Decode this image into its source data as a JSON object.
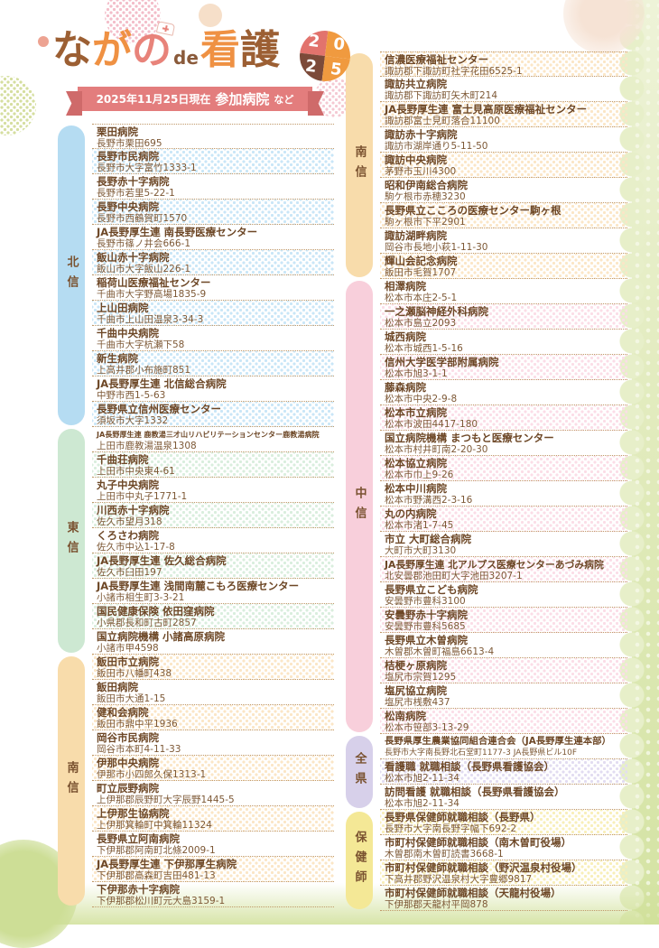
{
  "header": {
    "logo": {
      "full_title": "ながの de 看護 2025",
      "segments": [
        {
          "text": "な",
          "color": "#9c5f33"
        },
        {
          "text": "が",
          "color": "#ef9143"
        },
        {
          "text": "の",
          "color": "#e8837a"
        },
        {
          "text": "de",
          "color": "#8a5a3a"
        },
        {
          "text": "看",
          "color": "#ef9143"
        },
        {
          "text": "護",
          "color": "#9c5f33"
        }
      ],
      "badge_digits": [
        "2",
        "0",
        "2",
        "5"
      ],
      "badge_colors": [
        "#e2736d",
        "#f09a3f",
        "#7c4a39",
        "#f09a3f"
      ]
    },
    "ribbon": {
      "date_text": "2025年11月25日現在",
      "main_text": "参加病院",
      "suffix_text": "など",
      "color": "#e37d7d"
    }
  },
  "columns": [
    {
      "first_row_pattern": false,
      "sections": [
        {
          "region": "北信",
          "tab_color": "#b5dcf2",
          "dot_color": "#c9e6f7",
          "entries": [
            {
              "name": "栗田病院",
              "address": "長野市栗田695"
            },
            {
              "name": "長野市民病院",
              "address": "長野市大字富竹1333-1"
            },
            {
              "name": "長野赤十字病院",
              "address": "長野市若里5-22-1"
            },
            {
              "name": "長野中央病院",
              "address": "長野市西鶴賀町1570"
            },
            {
              "name": "JA長野厚生連 南長野医療センター",
              "address": "長野市篠ノ井会666-1"
            },
            {
              "name": "飯山赤十字病院",
              "address": "飯山市大字飯山226-1"
            },
            {
              "name": "稲荷山医療福祉センター",
              "address": "千曲市大字野高場1835-9"
            },
            {
              "name": "上山田病院",
              "address": "千曲市上山田温泉3-34-3"
            },
            {
              "name": "千曲中央病院",
              "address": "千曲市大字杭瀬下58"
            },
            {
              "name": "新生病院",
              "address": "上高井郡小布施町851"
            },
            {
              "name": "JA長野厚生連 北信総合病院",
              "address": "中野市西1-5-63"
            },
            {
              "name": "長野県立信州医療センター",
              "address": "須坂市大字1332"
            }
          ]
        },
        {
          "region": "東信",
          "tab_color": "#cde8d2",
          "dot_color": "#d9eedd",
          "entries": [
            {
              "name": "JA長野厚生連 鹿教湯三才山リハビリテーションセンター鹿教湯病院",
              "address": "上田市鹿教湯温泉1308"
            },
            {
              "name": "千曲荘病院",
              "address": "上田市中央東4-61"
            },
            {
              "name": "丸子中央病院",
              "address": "上田市中丸子1771-1"
            },
            {
              "name": "川西赤十字病院",
              "address": "佐久市望月318"
            },
            {
              "name": "くろさわ病院",
              "address": "佐久市中込1-17-8"
            },
            {
              "name": "JA長野厚生連 佐久総合病院",
              "address": "佐久市臼田197"
            },
            {
              "name": "JA長野厚生連 浅間南麓こもろ医療センター",
              "address": "小諸市相生町3-3-21"
            },
            {
              "name": "国民健康保険 依田窪病院",
              "address": "小県郡長和町古町2857"
            },
            {
              "name": "国立病院機構 小諸高原病院",
              "address": "小諸市甲4598"
            }
          ]
        },
        {
          "region": "南信",
          "tab_color": "#f8dcab",
          "dot_color": "#fbe6c6",
          "entries": [
            {
              "name": "飯田市立病院",
              "address": "飯田市八幡町438"
            },
            {
              "name": "飯田病院",
              "address": "飯田市大通1-15"
            },
            {
              "name": "健和会病院",
              "address": "飯田市鼎中平1936"
            },
            {
              "name": "岡谷市民病院",
              "address": "岡谷市本町4-11-33"
            },
            {
              "name": "伊那中央病院",
              "address": "伊那市小四郎久保1313-1"
            },
            {
              "name": "町立辰野病院",
              "address": "上伊那郡辰野町大字辰野1445-5"
            },
            {
              "name": "上伊那生協病院",
              "address": "上伊那箕輪町中箕輪11324"
            },
            {
              "name": "長野県立阿南病院",
              "address": "下伊那郡阿南町北條2009-1"
            },
            {
              "name": "JA長野厚生連 下伊那厚生病院",
              "address": "下伊那郡高森町吉田481-13"
            },
            {
              "name": "下伊那赤十字病院",
              "address": "下伊那郡松川町元大島3159-1"
            }
          ]
        }
      ]
    },
    {
      "first_row_pattern": true,
      "sections": [
        {
          "region": "南信",
          "tab_color": "#f8dcab",
          "dot_color": "#fbe6c6",
          "entries": [
            {
              "name": "信濃医療福祉センター",
              "address": "諏訪郡下諏訪町社字花田6525-1"
            },
            {
              "name": "諏訪共立病院",
              "address": "諏訪郡下諏訪町矢木町214"
            },
            {
              "name": "JA長野厚生連 富士見高原医療福祉センター",
              "address": "諏訪郡富士見町落合11100"
            },
            {
              "name": "諏訪赤十字病院",
              "address": "諏訪市湖岸通り5-11-50"
            },
            {
              "name": "諏訪中央病院",
              "address": "茅野市玉川4300"
            },
            {
              "name": "昭和伊南総合病院",
              "address": "駒ケ根市赤穂3230"
            },
            {
              "name": "長野県立こころの医療センター駒ヶ根",
              "address": "駒ヶ根市下平2901"
            },
            {
              "name": "諏訪湖畔病院",
              "address": "岡谷市長地小萩1-11-30"
            },
            {
              "name": "輝山会記念病院",
              "address": "飯田市毛賀1707"
            }
          ]
        },
        {
          "region": "中信",
          "tab_color": "#f8cfdb",
          "dot_color": "#fbdde7",
          "entries": [
            {
              "name": "相澤病院",
              "address": "松本市本庄2-5-1"
            },
            {
              "name": "一之瀬脳神経外科病院",
              "address": "松本市島立2093"
            },
            {
              "name": "城西病院",
              "address": "松本市城西1-5-16"
            },
            {
              "name": "信州大学医学部附属病院",
              "address": "松本市旭3-1-1"
            },
            {
              "name": "藤森病院",
              "address": "松本市中央2-9-8"
            },
            {
              "name": "松本市立病院",
              "address": "松本市波田4417-180"
            },
            {
              "name": "国立病院機構 まつもと医療センター",
              "address": "松本市村井町南2-20-30"
            },
            {
              "name": "松本協立病院",
              "address": "松本市巾上9-26"
            },
            {
              "name": "松本中川病院",
              "address": "松本市野溝西2-3-16"
            },
            {
              "name": "丸の内病院",
              "address": "松本市渚1-7-45"
            },
            {
              "name": "市立 大町総合病院",
              "address": "大町市大町3130"
            },
            {
              "name": "JA長野厚生連 北アルプス医療センターあづみ病院",
              "address": "北安曇郡池田町大字池田3207-1"
            },
            {
              "name": "長野県立こども病院",
              "address": "安曇野市豊科3100"
            },
            {
              "name": "安曇野赤十字病院",
              "address": "安曇野市豊科5685"
            },
            {
              "name": "長野県立木曽病院",
              "address": "木曽郡木曽町福島6613-4"
            },
            {
              "name": "桔梗ヶ原病院",
              "address": "塩尻市宗賀1295"
            },
            {
              "name": "塩尻協立病院",
              "address": "塩尻市桟敷437"
            },
            {
              "name": "松南病院",
              "address": "松本市笹部3-13-29"
            }
          ]
        },
        {
          "region": "全県",
          "tab_color": "#d7d0ea",
          "dot_color": "#e2dcf1",
          "entries": [
            {
              "name": "長野県厚生農業協同組合連合会（JA長野厚生連本部）",
              "address": "長野市大字南長野北石堂町1177-3 JA長野県ビル10F"
            },
            {
              "name": "看護職 就職相談（長野県看護協会）",
              "address": "松本市旭2-11-34"
            },
            {
              "name": "訪問看護 就職相談（長野県看護協会）",
              "address": "松本市旭2-11-34"
            }
          ]
        },
        {
          "region": "保健師",
          "tab_color": "#f4e896",
          "dot_color": "#f8efb9",
          "entries": [
            {
              "name": "長野県保健師就職相談（長野県）",
              "address": "長野市大字南長野字幅下692-2"
            },
            {
              "name": "市町村保健師就職相談（南木曽町役場）",
              "address": "木曽郡南木曽町読書3668-1"
            },
            {
              "name": "市町村保健師就職相談（野沢温泉村役場）",
              "address": "下高井郡野沢温泉村大字豊郷9817"
            },
            {
              "name": "市町村保健師就職相談（天龍村役場）",
              "address": "下伊那郡天龍村平岡878"
            }
          ]
        }
      ]
    }
  ]
}
